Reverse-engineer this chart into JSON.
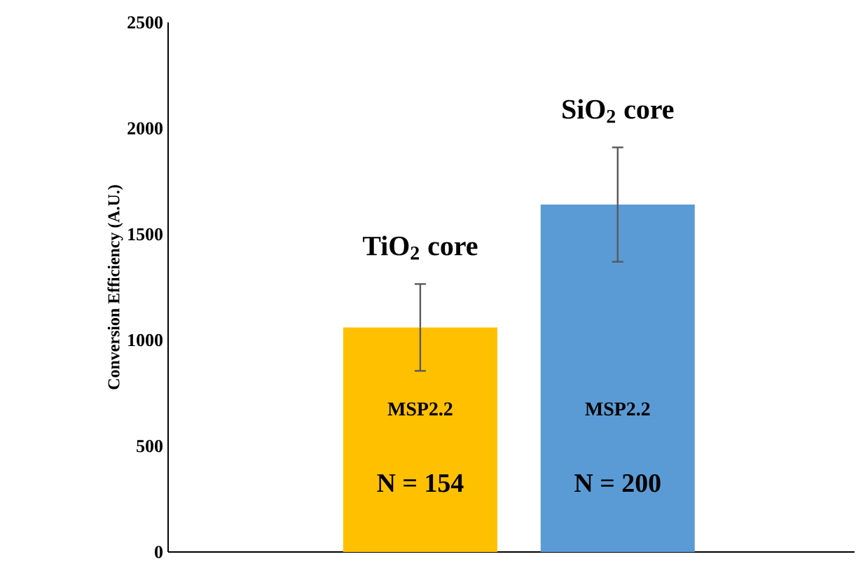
{
  "chart_data": {
    "type": "bar",
    "ylabel": "Conversion Efficiency (A.U.)",
    "categories": [
      "TiO$_{2}$ core",
      "SiO$_{2}$ core"
    ],
    "values": [
      1060,
      1640
    ],
    "errors": [
      205,
      270
    ],
    "colors": [
      "#ffc000",
      "#5b9bd5"
    ],
    "ylim": [
      0,
      2500
    ],
    "yticks": [
      0,
      500,
      1000,
      1500,
      2000,
      2500
    ],
    "annotations": [
      "MSP2.2",
      "N = 154",
      "MSP2.2",
      "N = 200"
    ],
    "grid": false
  }
}
